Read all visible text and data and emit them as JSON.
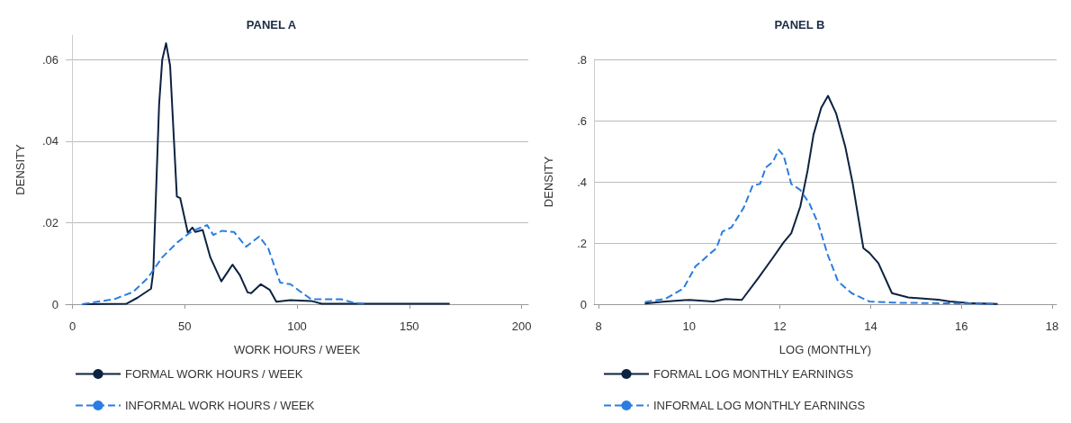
{
  "chart_data": [
    {
      "type": "line",
      "title": "PANEL A",
      "xlabel": "WORK HOURS / WEEK",
      "ylabel": "DENSITY",
      "xlim": [
        -3,
        203
      ],
      "xticks": [
        0,
        50,
        100,
        150,
        200
      ],
      "ylim": [
        0,
        0.066
      ],
      "yticks": [
        0,
        {
          "value": 0.02,
          "label": ".02"
        },
        {
          "value": 0.04,
          "label": ".04"
        },
        {
          "value": 0.06,
          "label": ".06"
        }
      ],
      "grid": "y",
      "legend": "bottom",
      "marker": "none",
      "series": [
        {
          "name": "FORMAL WORK HOURS / WEEK",
          "color": "#0d2240",
          "line_style": "solid",
          "x": [
            4.4,
            24,
            29,
            35,
            36,
            38.6,
            40,
            41.7,
            43.5,
            46.5,
            48,
            51.4,
            53.4,
            54.7,
            58,
            61.4,
            66.3,
            71.3,
            74.6,
            78,
            79.6,
            83.9,
            87.9,
            90.8,
            97,
            106.4,
            111,
            130,
            150,
            168
          ],
          "values": [
            0,
            0.0001,
            0.0016,
            0.0038,
            0.008,
            0.049,
            0.06,
            0.064,
            0.0585,
            0.0264,
            0.026,
            0.0175,
            0.0188,
            0.0177,
            0.0182,
            0.0115,
            0.0056,
            0.0097,
            0.0071,
            0.0029,
            0.0027,
            0.0049,
            0.0035,
            0.0006,
            0.001,
            0.0008,
            0.0001,
            0.0001,
            0.0001,
            0.0001
          ]
        },
        {
          "name": "INFORMAL WORK HOURS / WEEK",
          "color": "#2a7de1",
          "line_style": "dashed",
          "x": [
            4.4,
            19,
            27,
            33.5,
            40,
            46.8,
            53.4,
            60,
            62.7,
            66.7,
            72,
            77.3,
            83.2,
            87.2,
            92.5,
            97.1,
            102.5,
            106.4,
            115.7,
            119.7,
            125,
            130
          ],
          "values": [
            0,
            0.0013,
            0.003,
            0.0064,
            0.0115,
            0.0152,
            0.018,
            0.0194,
            0.017,
            0.018,
            0.0177,
            0.0141,
            0.0166,
            0.0137,
            0.0053,
            0.0049,
            0.0027,
            0.0012,
            0.0012,
            0.0012,
            0.0004,
            0.0001
          ]
        }
      ]
    },
    {
      "type": "line",
      "title": "PANEL B",
      "xlabel": "LOG (MONTHLY)",
      "ylabel": "DENSITY",
      "xlim": [
        7.9,
        18.1
      ],
      "xticks": [
        8,
        10,
        12,
        14,
        16,
        18
      ],
      "ylim": [
        0,
        0.8
      ],
      "yticks": [
        0,
        {
          "value": 0.2,
          "label": ".2"
        },
        {
          "value": 0.4,
          "label": ".4"
        },
        {
          "value": 0.6,
          "label": ".6"
        },
        {
          "value": 0.8,
          "label": ".8"
        }
      ],
      "grid": "y",
      "legend": "bottom",
      "marker": "none",
      "series": [
        {
          "name": "FORMAL LOG MONTHLY EARNINGS",
          "color": "#0d2240",
          "line_style": "solid",
          "x": [
            9.02,
            9.48,
            10.0,
            10.53,
            10.8,
            11.16,
            11.52,
            11.85,
            12.08,
            12.25,
            12.45,
            12.61,
            12.74,
            12.91,
            13.06,
            13.24,
            13.44,
            13.6,
            13.84,
            13.97,
            14.17,
            14.47,
            14.83,
            15.49,
            15.75,
            16.15,
            16.8
          ],
          "values": [
            0.002,
            0.009,
            0.014,
            0.009,
            0.017,
            0.014,
            0.085,
            0.153,
            0.202,
            0.232,
            0.32,
            0.437,
            0.554,
            0.642,
            0.681,
            0.623,
            0.515,
            0.398,
            0.183,
            0.168,
            0.134,
            0.036,
            0.022,
            0.015,
            0.009,
            0.004,
            0.001
          ]
        },
        {
          "name": "INFORMAL LOG MONTHLY EARNINGS",
          "color": "#2a7de1",
          "line_style": "dashed",
          "x": [
            9.02,
            9.48,
            9.87,
            10.14,
            10.27,
            10.44,
            10.6,
            10.73,
            10.93,
            11.2,
            11.4,
            11.56,
            11.69,
            11.85,
            11.97,
            12.08,
            12.25,
            12.45,
            12.65,
            12.85,
            13.05,
            13.28,
            13.58,
            13.97,
            14.5,
            16.8
          ],
          "values": [
            0.007,
            0.018,
            0.051,
            0.124,
            0.14,
            0.163,
            0.183,
            0.237,
            0.251,
            0.315,
            0.388,
            0.393,
            0.447,
            0.466,
            0.505,
            0.486,
            0.393,
            0.373,
            0.329,
            0.261,
            0.163,
            0.075,
            0.036,
            0.009,
            0.005,
            0.001
          ]
        }
      ]
    }
  ]
}
